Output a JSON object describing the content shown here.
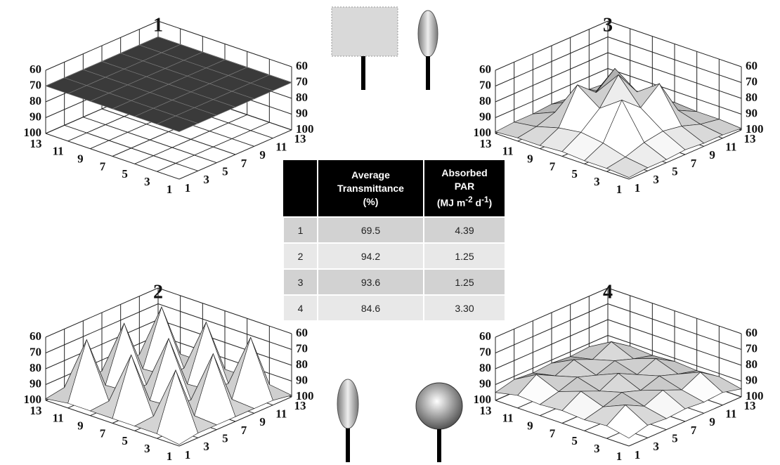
{
  "chart_data": [
    {
      "type": "surface",
      "title": "1",
      "color": "#3a3a3a",
      "x": [
        1,
        3,
        5,
        7,
        9,
        11,
        13
      ],
      "y": [
        1,
        3,
        5,
        7,
        9,
        11,
        13
      ],
      "zlim": [
        100,
        60
      ],
      "zticks": [
        60,
        70,
        80,
        90,
        100
      ],
      "z": [
        [
          70,
          70,
          70,
          70,
          70,
          70,
          70
        ],
        [
          70,
          70,
          70,
          70,
          70,
          70,
          70
        ],
        [
          70,
          70,
          70,
          70,
          70,
          70,
          70
        ],
        [
          70,
          70,
          70,
          70,
          70,
          70,
          70
        ],
        [
          70,
          70,
          70,
          70,
          70,
          70,
          70
        ],
        [
          70,
          70,
          70,
          70,
          70,
          70,
          70
        ],
        [
          70,
          70,
          70,
          70,
          70,
          70,
          70
        ]
      ]
    },
    {
      "type": "surface",
      "title": "2",
      "color": "#cfcfcf",
      "x": [
        1,
        3,
        5,
        7,
        9,
        11,
        13
      ],
      "y": [
        1,
        3,
        5,
        7,
        9,
        11,
        13
      ],
      "zlim": [
        100,
        60
      ],
      "zticks": [
        60,
        70,
        80,
        90,
        100
      ],
      "z": [
        [
          99,
          97,
          97,
          97,
          97,
          97,
          99
        ],
        [
          97,
          62,
          96,
          62,
          96,
          62,
          97
        ],
        [
          97,
          96,
          95,
          96,
          95,
          96,
          97
        ],
        [
          97,
          62,
          96,
          62,
          96,
          62,
          97
        ],
        [
          97,
          96,
          95,
          96,
          95,
          96,
          97
        ],
        [
          97,
          62,
          96,
          62,
          96,
          62,
          97
        ],
        [
          99,
          97,
          97,
          97,
          97,
          97,
          99
        ]
      ]
    },
    {
      "type": "surface",
      "title": "3",
      "color": "#cfcfcf",
      "x": [
        1,
        3,
        5,
        7,
        9,
        11,
        13
      ],
      "y": [
        1,
        3,
        5,
        7,
        9,
        11,
        13
      ],
      "zlim": [
        100,
        60
      ],
      "zticks": [
        60,
        70,
        80,
        90,
        100
      ],
      "z": [
        [
          99,
          98,
          98,
          97,
          98,
          98,
          99
        ],
        [
          98,
          96,
          92,
          90,
          92,
          96,
          98
        ],
        [
          98,
          92,
          70,
          80,
          70,
          92,
          98
        ],
        [
          97,
          90,
          80,
          64,
          80,
          90,
          97
        ],
        [
          98,
          92,
          70,
          80,
          70,
          92,
          98
        ],
        [
          98,
          96,
          92,
          90,
          92,
          96,
          98
        ],
        [
          99,
          98,
          98,
          97,
          98,
          98,
          99
        ]
      ]
    },
    {
      "type": "surface",
      "title": "4",
      "color": "#cfcfcf",
      "x": [
        1,
        3,
        5,
        7,
        9,
        11,
        13
      ],
      "y": [
        1,
        3,
        5,
        7,
        9,
        11,
        13
      ],
      "zlim": [
        100,
        60
      ],
      "zticks": [
        60,
        70,
        80,
        90,
        100
      ],
      "z": [
        [
          95,
          92,
          93,
          92,
          93,
          92,
          95
        ],
        [
          92,
          84,
          90,
          85,
          90,
          84,
          92
        ],
        [
          93,
          90,
          86,
          90,
          86,
          90,
          93
        ],
        [
          92,
          85,
          90,
          84,
          90,
          85,
          92
        ],
        [
          93,
          90,
          86,
          90,
          86,
          90,
          93
        ],
        [
          92,
          84,
          90,
          85,
          90,
          84,
          92
        ],
        [
          95,
          92,
          93,
          92,
          93,
          92,
          95
        ]
      ]
    }
  ],
  "table": {
    "header": {
      "transmittance": [
        "Average",
        "Transmittance",
        "(%)"
      ],
      "par": [
        "Absorbed",
        "PAR"
      ],
      "par_unit": {
        "open": "(MJ m",
        "exp1": "-2",
        "mid": " d",
        "exp2": "-1",
        "close": ")"
      }
    },
    "rows": [
      [
        "1",
        "69.5",
        "4.39"
      ],
      [
        "2",
        "94.2",
        "1.25"
      ],
      [
        "3",
        "93.6",
        "1.25"
      ],
      [
        "4",
        "84.6",
        "3.30"
      ]
    ]
  }
}
